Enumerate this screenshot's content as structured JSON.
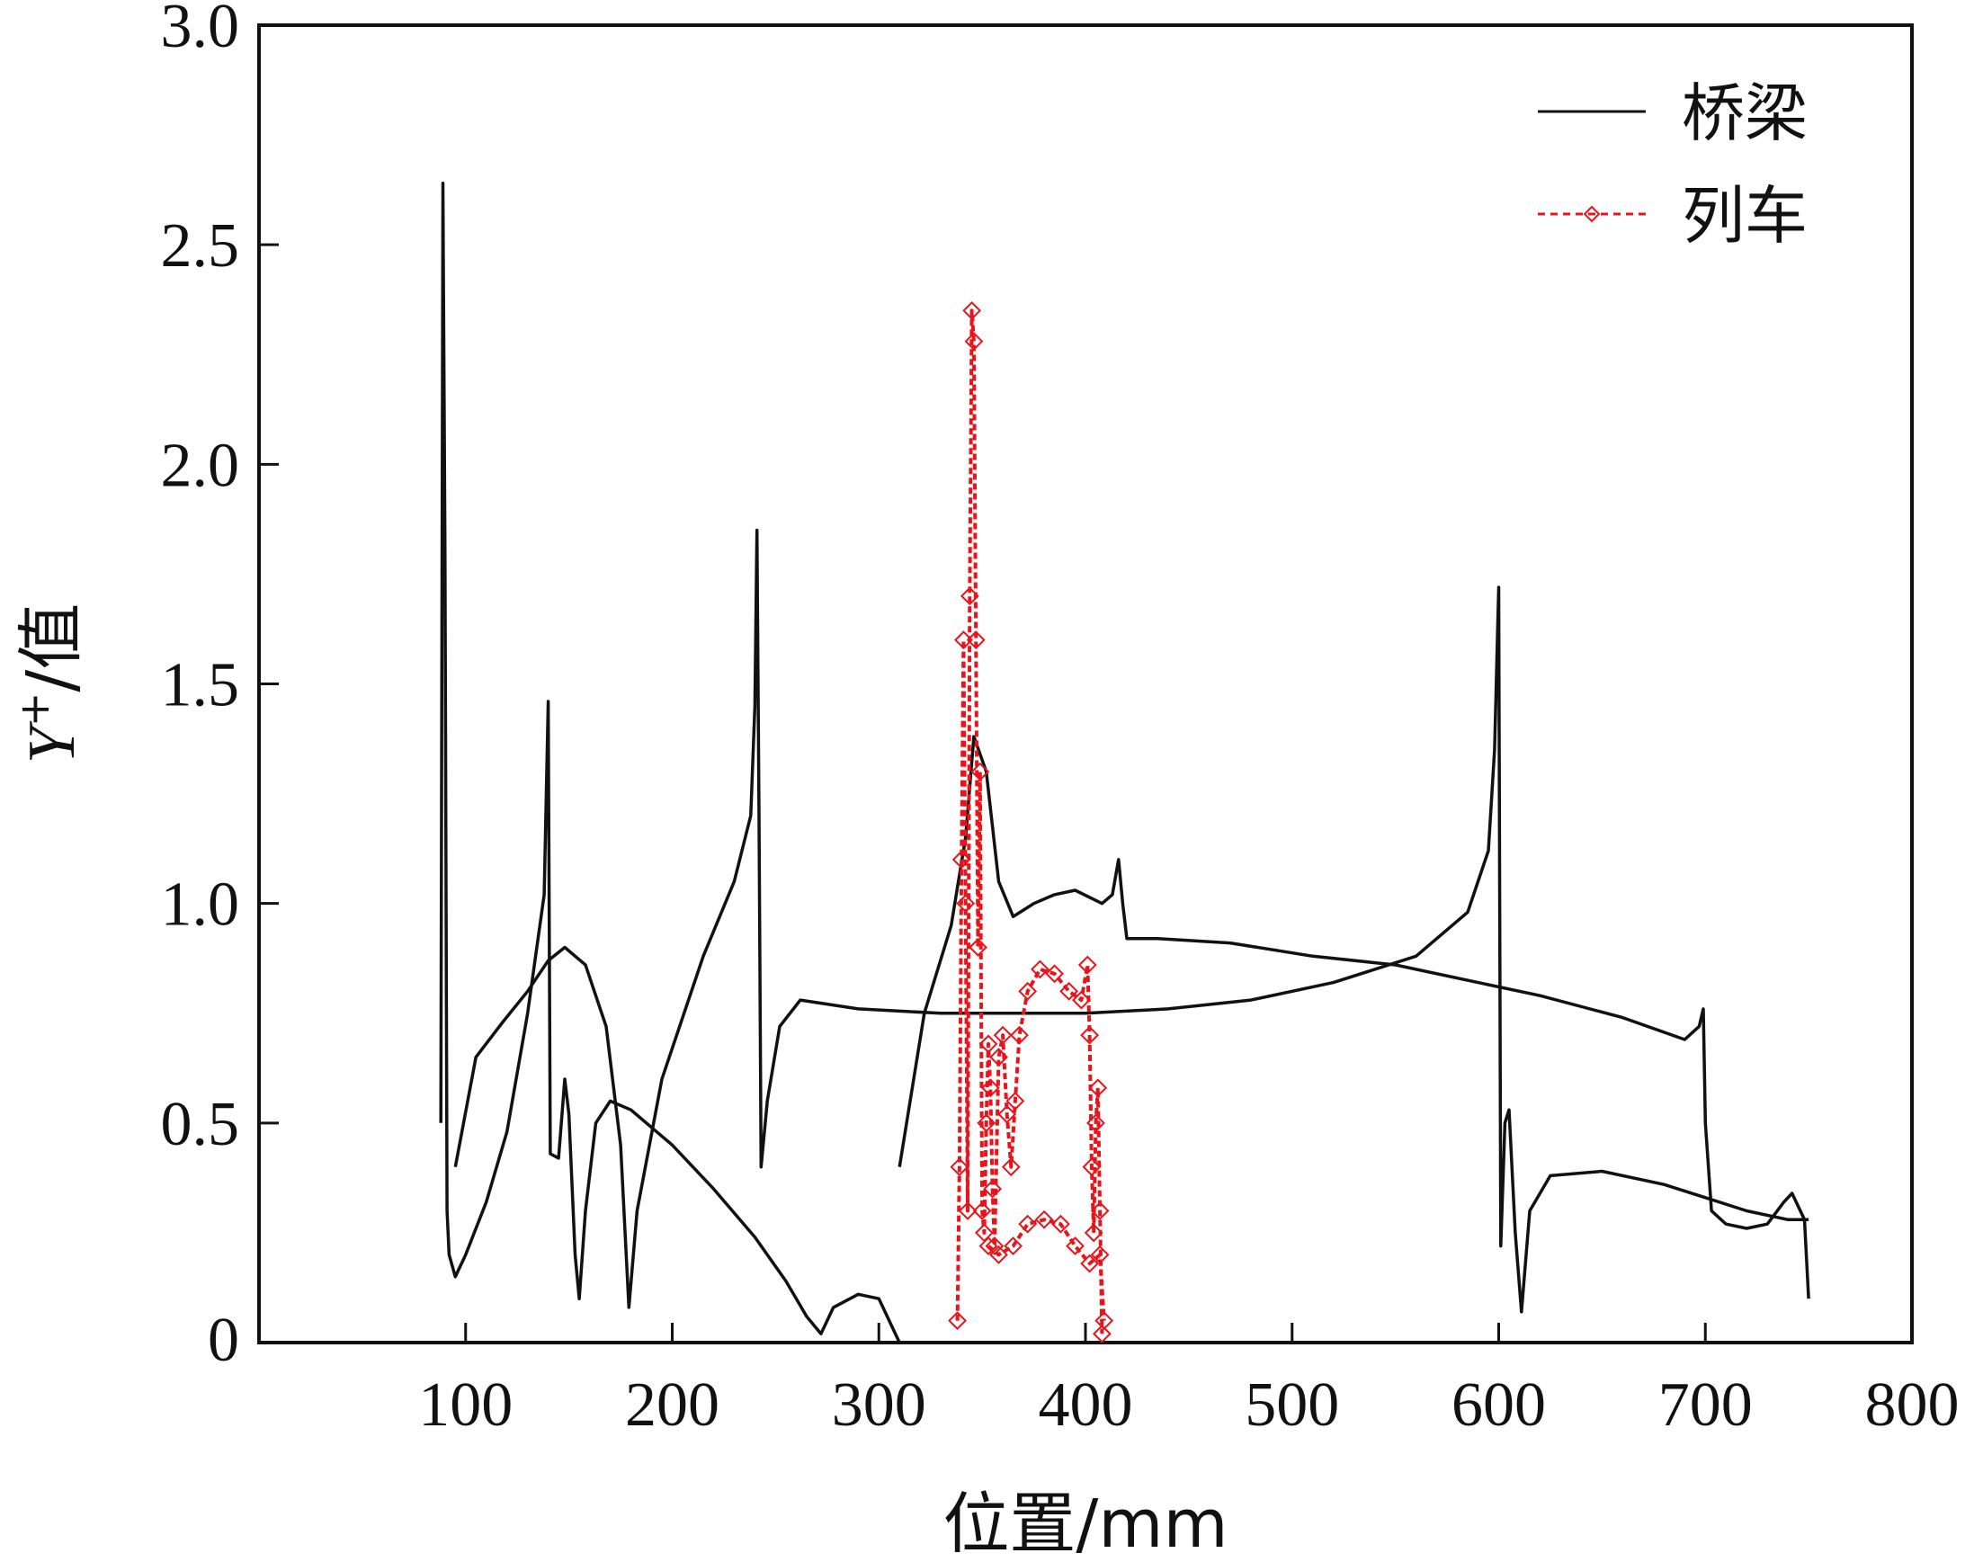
{
  "chart_data": {
    "type": "line",
    "title": "",
    "xlabel": "位置/mm",
    "ylabel_main": "Y",
    "ylabel_sup": "+",
    "ylabel_suffix": "/值",
    "xlim": [
      0,
      800
    ],
    "ylim": [
      0,
      3.0
    ],
    "x_ticks": [
      100,
      200,
      300,
      400,
      500,
      600,
      700,
      800
    ],
    "x_tick_labels": [
      "100",
      "200",
      "300",
      "400",
      "500",
      "600",
      "700",
      "800"
    ],
    "y_ticks": [
      0,
      0.5,
      1.0,
      1.5,
      2.0,
      2.5,
      3.0
    ],
    "y_tick_labels": [
      "0",
      "0.5",
      "1.0",
      "1.5",
      "2.0",
      "2.5",
      "3.0"
    ],
    "grid": false,
    "legend_position": "top-right",
    "colors": {
      "bridge": "#111111",
      "train": "#e8141b"
    },
    "series": [
      {
        "name": "桥梁",
        "style": "solid",
        "segments": [
          [
            [
              88,
              0.5
            ],
            [
              89,
              2.64
            ],
            [
              90,
              1.8
            ],
            [
              91,
              0.3
            ],
            [
              92,
              0.2
            ],
            [
              95,
              0.15
            ],
            [
              100,
              0.2
            ],
            [
              110,
              0.32
            ],
            [
              120,
              0.48
            ],
            [
              130,
              0.75
            ],
            [
              138,
              1.02
            ],
            [
              140,
              1.46
            ],
            [
              141,
              0.43
            ],
            [
              145,
              0.42
            ],
            [
              148,
              0.6
            ],
            [
              150,
              0.52
            ],
            [
              153,
              0.2
            ],
            [
              155,
              0.1
            ],
            [
              158,
              0.3
            ],
            [
              163,
              0.5
            ],
            [
              170,
              0.55
            ],
            [
              180,
              0.53
            ],
            [
              200,
              0.45
            ],
            [
              220,
              0.35
            ],
            [
              240,
              0.24
            ],
            [
              255,
              0.14
            ],
            [
              265,
              0.06
            ],
            [
              272,
              0.02
            ],
            [
              278,
              0.08
            ],
            [
              290,
              0.11
            ],
            [
              300,
              0.1
            ],
            [
              310,
              0.0
            ]
          ],
          [
            [
              95,
              0.4
            ],
            [
              105,
              0.65
            ],
            [
              118,
              0.73
            ],
            [
              130,
              0.8
            ],
            [
              140,
              0.87
            ],
            [
              148,
              0.9
            ],
            [
              158,
              0.86
            ],
            [
              168,
              0.72
            ],
            [
              175,
              0.45
            ],
            [
              179,
              0.08
            ],
            [
              183,
              0.3
            ],
            [
              195,
              0.6
            ],
            [
              215,
              0.88
            ],
            [
              230,
              1.05
            ],
            [
              238,
              1.2
            ],
            [
              240,
              1.45
            ],
            [
              241,
              1.85
            ],
            [
              242,
              1.2
            ],
            [
              243,
              0.4
            ],
            [
              246,
              0.55
            ],
            [
              252,
              0.72
            ],
            [
              262,
              0.78
            ],
            [
              290,
              0.76
            ],
            [
              330,
              0.75
            ],
            [
              400,
              0.75
            ],
            [
              440,
              0.76
            ],
            [
              480,
              0.78
            ],
            [
              520,
              0.82
            ],
            [
              560,
              0.88
            ],
            [
              585,
              0.98
            ],
            [
              595,
              1.12
            ],
            [
              598,
              1.35
            ],
            [
              600,
              1.72
            ],
            [
              601,
              0.22
            ],
            [
              603,
              0.5
            ],
            [
              605,
              0.53
            ],
            [
              608,
              0.25
            ],
            [
              611,
              0.07
            ],
            [
              615,
              0.3
            ],
            [
              625,
              0.38
            ],
            [
              650,
              0.39
            ],
            [
              680,
              0.36
            ],
            [
              700,
              0.33
            ],
            [
              720,
              0.3
            ],
            [
              740,
              0.28
            ],
            [
              750,
              0.28
            ]
          ],
          [
            [
              310,
              0.4
            ],
            [
              322,
              0.75
            ],
            [
              335,
              0.95
            ],
            [
              342,
              1.15
            ],
            [
              346,
              1.38
            ],
            [
              352,
              1.3
            ],
            [
              358,
              1.05
            ],
            [
              365,
              0.97
            ],
            [
              375,
              1.0
            ],
            [
              385,
              1.02
            ],
            [
              395,
              1.03
            ],
            [
              408,
              1.0
            ],
            [
              413,
              1.02
            ],
            [
              416,
              1.1
            ],
            [
              418,
              1.0
            ],
            [
              420,
              0.92
            ],
            [
              435,
              0.92
            ],
            [
              470,
              0.91
            ],
            [
              510,
              0.88
            ],
            [
              550,
              0.86
            ],
            [
              590,
              0.82
            ],
            [
              620,
              0.79
            ],
            [
              660,
              0.74
            ],
            [
              690,
              0.69
            ],
            [
              697,
              0.72
            ],
            [
              699,
              0.76
            ],
            [
              700,
              0.5
            ],
            [
              703,
              0.3
            ],
            [
              710,
              0.27
            ],
            [
              720,
              0.26
            ],
            [
              730,
              0.27
            ],
            [
              738,
              0.32
            ],
            [
              742,
              0.34
            ],
            [
              746,
              0.3
            ],
            [
              748,
              0.28
            ],
            [
              750,
              0.1
            ]
          ]
        ]
      },
      {
        "name": "列车",
        "style": "dashed-with-diamond-markers",
        "segments": [
          [
            [
              338,
              0.05
            ],
            [
              339,
              0.4
            ],
            [
              340,
              1.1
            ],
            [
              341,
              1.6
            ],
            [
              342,
              1.0
            ],
            [
              343,
              0.3
            ],
            [
              344,
              1.7
            ],
            [
              345,
              2.35
            ],
            [
              346,
              2.28
            ],
            [
              347,
              1.6
            ],
            [
              348,
              0.9
            ],
            [
              349,
              1.3
            ],
            [
              350,
              0.3
            ],
            [
              351,
              0.25
            ],
            [
              352,
              0.5
            ],
            [
              353,
              0.68
            ],
            [
              354,
              0.58
            ],
            [
              355,
              0.35
            ],
            [
              356,
              0.22
            ],
            [
              358,
              0.65
            ],
            [
              360,
              0.7
            ],
            [
              362,
              0.52
            ],
            [
              364,
              0.4
            ],
            [
              366,
              0.55
            ],
            [
              368,
              0.7
            ],
            [
              372,
              0.8
            ],
            [
              378,
              0.85
            ],
            [
              385,
              0.84
            ],
            [
              392,
              0.8
            ],
            [
              398,
              0.78
            ],
            [
              401,
              0.86
            ],
            [
              402,
              0.7
            ],
            [
              403,
              0.4
            ],
            [
              404,
              0.25
            ],
            [
              405,
              0.5
            ],
            [
              406,
              0.58
            ],
            [
              407,
              0.3
            ],
            [
              408,
              0.02
            ]
          ],
          [
            [
              353,
              0.22
            ],
            [
              358,
              0.2
            ],
            [
              365,
              0.22
            ],
            [
              372,
              0.27
            ],
            [
              380,
              0.28
            ],
            [
              388,
              0.27
            ],
            [
              395,
              0.22
            ],
            [
              402,
              0.18
            ],
            [
              407,
              0.2
            ],
            [
              409,
              0.05
            ]
          ]
        ]
      }
    ]
  }
}
